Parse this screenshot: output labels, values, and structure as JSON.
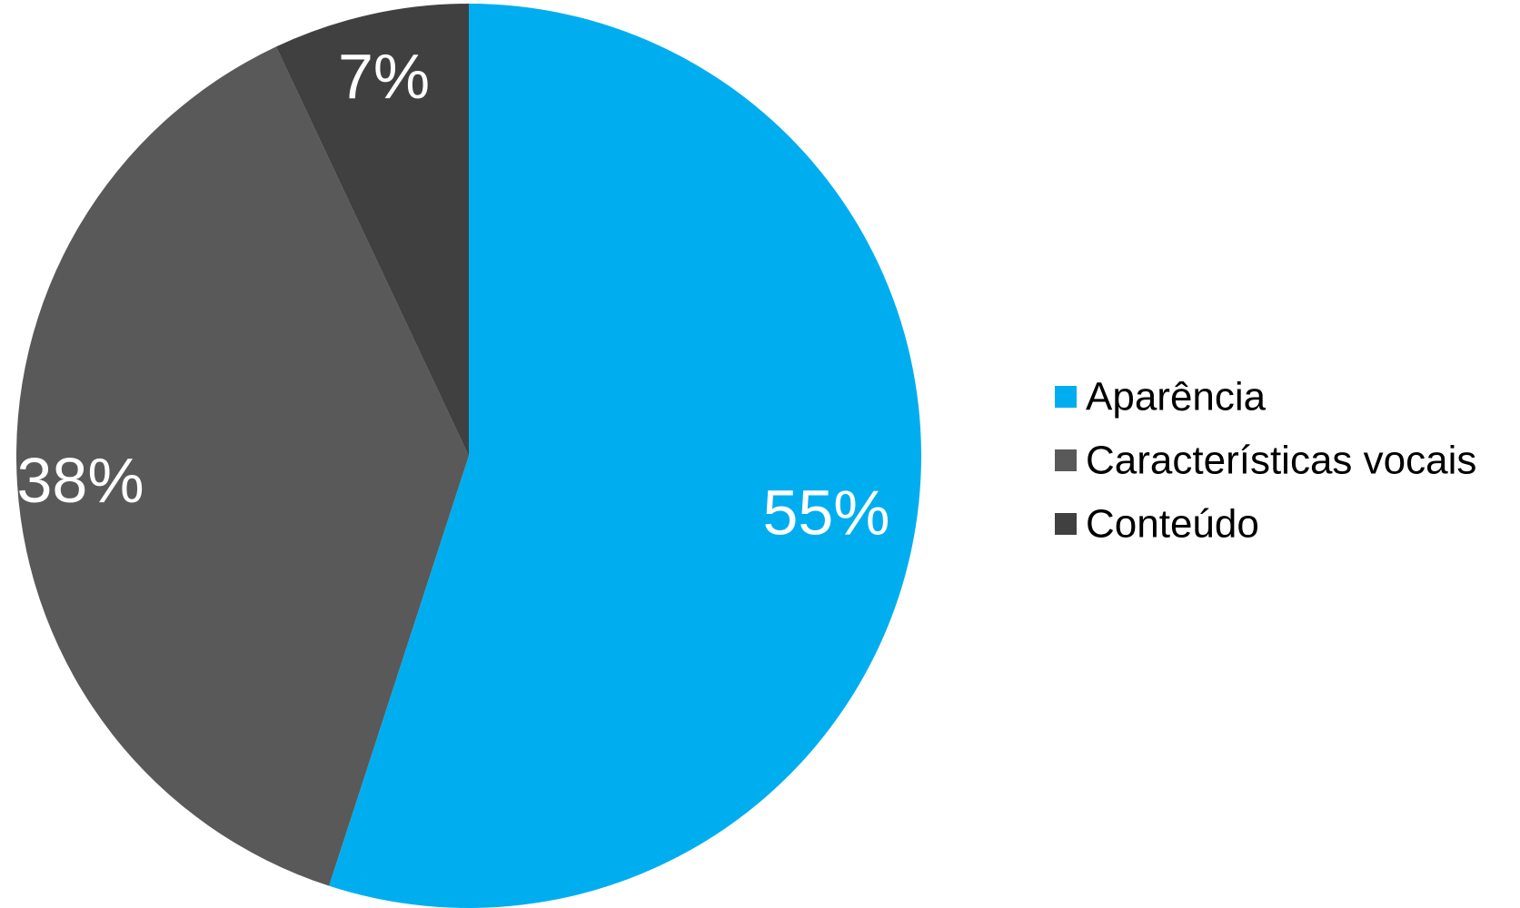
{
  "chart_data": {
    "type": "pie",
    "categories": [
      "Aparência",
      "Características vocais",
      "Conteúdo"
    ],
    "values": [
      55,
      38,
      7
    ],
    "data_labels": [
      "55%",
      "38%",
      "7%"
    ],
    "colors": [
      "#00AEEF",
      "#595959",
      "#404040"
    ],
    "start_angle": "12 o'clock",
    "direction": "clockwise",
    "legend_placement": "right"
  }
}
